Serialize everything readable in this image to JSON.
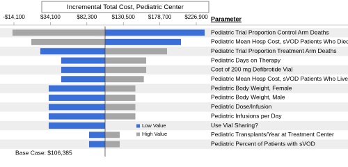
{
  "chart_data": {
    "type": "tornado",
    "title": "Incremental Total Cost, Pediatric Center",
    "categories_header": "Parameter",
    "categories": [
      "Pediatric Trial Proportion Control Arm Deaths",
      "Pediatric Mean Hosp Cost, sVOD Patients Who Died",
      "Pediatric Trial Proportion Treatment Arm Deaths",
      "Pediatric Days on Therapy",
      "Cost of 200 mg Defibrotide Vial",
      "Pediatric Mean Hosp Cost, sVOD Patients Who Lived",
      "Pediatric Body Weight, Female",
      "Pediatric Body Weight, Male",
      "Pediatric Dose/Infusion",
      "Pediatric Infusions per Day",
      "Use Vial Sharing?",
      "Pediatric Transplants/Year at Treatment Center",
      "Pediatric Percent of Patients with sVOD"
    ],
    "series": [
      {
        "name": "Low Value",
        "color": "#3a6fd8",
        "values": [
          238000,
          206700,
          20800,
          48400,
          48400,
          48400,
          31900,
          31900,
          31900,
          31900,
          31900,
          85200,
          85200
        ]
      },
      {
        "name": "High Value",
        "color": "#a6a6a6",
        "values": [
          -16000,
          8900,
          188300,
          160700,
          160700,
          157600,
          146400,
          146400,
          146400,
          146400,
          106385,
          125700,
          125700
        ]
      }
    ],
    "base_case": {
      "value": 106385,
      "label": "Base Case: $106,385"
    },
    "xlim": [
      -14100,
      226900
    ],
    "xticks": [
      {
        "value": -14100,
        "label": "-$14,100"
      },
      {
        "value": 34100,
        "label": "$34,100"
      },
      {
        "value": 82300,
        "label": "$82,300"
      },
      {
        "value": 130500,
        "label": "$130,500"
      },
      {
        "value": 178700,
        "label": "$178,700"
      },
      {
        "value": 226900,
        "label": "$226,900"
      }
    ]
  }
}
